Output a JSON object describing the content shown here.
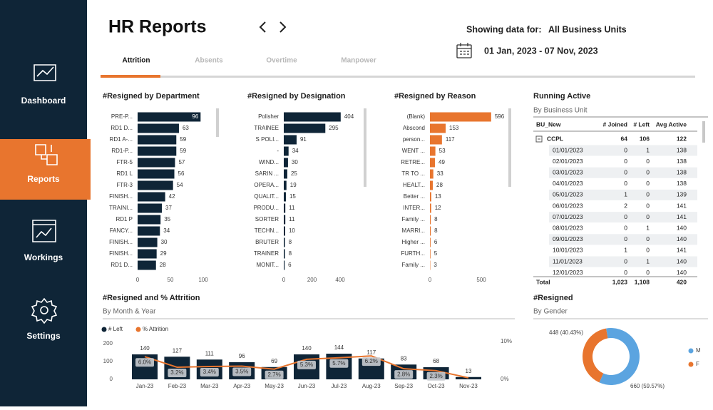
{
  "sidebar": {
    "items": [
      "Dashboard",
      "Reports",
      "Workings",
      "Settings"
    ],
    "active": 1
  },
  "header": {
    "title": "HR Reports",
    "filter_label": "Showing data for:",
    "filter_value": "All Business Units",
    "date_range": "01 Jan, 2023 - 07 Nov, 2023"
  },
  "tabs": {
    "items": [
      "Attrition",
      "Absents",
      "Overtime",
      "Manpower"
    ],
    "active": 0
  },
  "chart_data": [
    {
      "type": "barh",
      "title": "#Resigned by Department",
      "categories": [
        "PRE-P...",
        "RD1 D...",
        "RD1 A-...",
        "RD1-P...",
        "FTR-5",
        "RD1 L",
        "FTR-3",
        "FINISH...",
        "TRAINI...",
        "RD1 P",
        "FANCY...",
        "FINISH...",
        "FINISH...",
        "RD1 D..."
      ],
      "values": [
        96,
        63,
        59,
        59,
        57,
        56,
        54,
        42,
        37,
        35,
        34,
        30,
        29,
        28
      ],
      "color": "#0f2537",
      "xlim": [
        0,
        110
      ],
      "xticks": [
        0,
        50,
        100
      ]
    },
    {
      "type": "barh",
      "title": "#Resigned by Designation",
      "categories": [
        "Polisher",
        "TRAINEE",
        "S POLI...",
        "-",
        "WIND...",
        "SARIN ...",
        "OPERA...",
        "QUALIT...",
        "PRODU...",
        "SORTER",
        "TECHN...",
        "BRUTER",
        "TRAINER",
        "MONIT..."
      ],
      "values": [
        404,
        295,
        91,
        34,
        30,
        25,
        19,
        15,
        11,
        11,
        10,
        8,
        8,
        6
      ],
      "color": "#0f2537",
      "xlim": [
        0,
        450
      ],
      "xticks": [
        0,
        200,
        400
      ]
    },
    {
      "type": "barh",
      "title": "#Resigned by Reason",
      "categories": [
        "(Blank)",
        "Abscond",
        "person...",
        "WENT ...",
        "RETRE...",
        "TR TO ...",
        "HEALT...",
        "Better ...",
        "INTER...",
        "Family ...",
        "MARRI...",
        "Higher ...",
        "FURTH...",
        "Family ..."
      ],
      "values": [
        596,
        153,
        117,
        53,
        49,
        33,
        28,
        13,
        12,
        8,
        8,
        6,
        5,
        3
      ],
      "color": "#e8752e",
      "xlim": [
        0,
        620
      ],
      "xticks": [
        0,
        500
      ]
    },
    {
      "type": "combo",
      "title": "#Resigned and % Attrition",
      "subtitle": "By Month & Year",
      "categories": [
        "Jan-23",
        "Feb-23",
        "Mar-23",
        "Apr-23",
        "May-23",
        "Jun-23",
        "Jul-23",
        "Aug-23",
        "Sep-23",
        "Oct-23",
        "Nov-23"
      ],
      "series": [
        {
          "name": "# Left",
          "type": "bar",
          "color": "#0f2537",
          "values": [
            140,
            127,
            111,
            96,
            69,
            140,
            144,
            117,
            83,
            68,
            13
          ]
        },
        {
          "name": "% Attrition",
          "type": "line",
          "axis": "y2",
          "color": "#e8752e",
          "values": [
            6.0,
            3.2,
            3.4,
            3.5,
            2.7,
            5.3,
            5.7,
            6.2,
            2.8,
            2.3,
            0.4
          ],
          "value_labels": [
            "6.0%",
            "3.2%",
            "3.4%",
            "3.5%",
            "2.7%",
            "5.3%",
            "5.7%",
            "6.2%",
            "2.8%",
            "2.3%",
            null
          ]
        }
      ],
      "ylim": [
        0,
        200
      ],
      "yticks": [
        0,
        100,
        200
      ],
      "y2lim": [
        0,
        10
      ],
      "y2ticks": [
        {
          "value": 0,
          "label": "0%"
        },
        {
          "value": 10,
          "label": "10%"
        }
      ]
    },
    {
      "type": "donut",
      "title": "#Resigned",
      "subtitle": "By Gender",
      "categories": [
        "M",
        "F"
      ],
      "values": [
        660,
        448
      ],
      "value_labels": [
        "660 (59.57%)",
        "448 (40.43%)"
      ],
      "colors": [
        "#5ba4e0",
        "#e8752e"
      ]
    }
  ],
  "table": {
    "title": "Running Active",
    "subtitle": "By Business Unit",
    "columns": [
      "BU_New",
      "# Joined",
      "# Left",
      "Avg Active"
    ],
    "group": [
      "CCPL",
      "64",
      "106",
      "122"
    ],
    "rows": [
      [
        "01/01/2023",
        "0",
        "1",
        "138"
      ],
      [
        "02/01/2023",
        "0",
        "0",
        "138"
      ],
      [
        "03/01/2023",
        "0",
        "0",
        "138"
      ],
      [
        "04/01/2023",
        "0",
        "0",
        "138"
      ],
      [
        "05/01/2023",
        "1",
        "0",
        "139"
      ],
      [
        "06/01/2023",
        "2",
        "0",
        "141"
      ],
      [
        "07/01/2023",
        "0",
        "0",
        "141"
      ],
      [
        "08/01/2023",
        "0",
        "1",
        "140"
      ],
      [
        "09/01/2023",
        "0",
        "0",
        "140"
      ],
      [
        "10/01/2023",
        "1",
        "0",
        "141"
      ],
      [
        "11/01/2023",
        "0",
        "1",
        "140"
      ],
      [
        "12/01/2023",
        "0",
        "0",
        "140"
      ]
    ],
    "total": [
      "Total",
      "1,023",
      "1,108",
      "420"
    ]
  }
}
